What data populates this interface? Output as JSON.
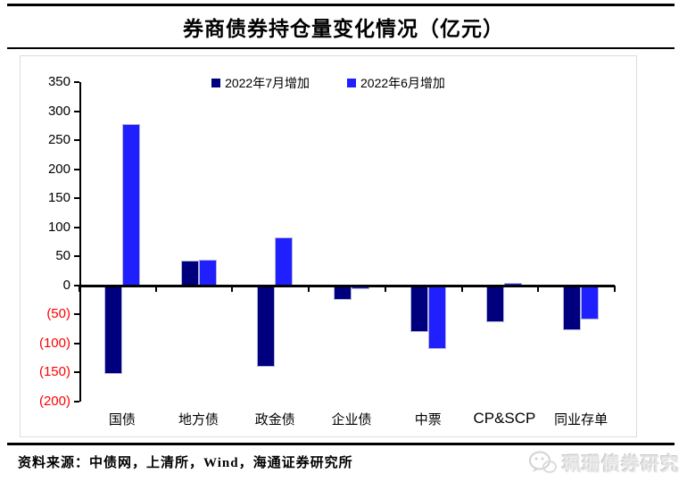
{
  "title": "券商债券持仓量变化情况（亿元）",
  "source": "资料来源：中债网，上清所，Wind，海通证券研究所",
  "watermark": "珮珊债券研究",
  "colors": {
    "july": "#00007F",
    "june": "#2020FF",
    "negative_label": "#FF0000",
    "axis": "#000000",
    "bar_edge": "#b4b4da"
  },
  "chart_data": {
    "type": "bar",
    "title": "券商债券持仓量变化情况（亿元）",
    "categories": [
      "国债",
      "地方债",
      "政金债",
      "企业债",
      "中票",
      "CP&SCP",
      "同业存单"
    ],
    "series": [
      {
        "name": "2022年7月增加",
        "color_key": "july",
        "values": [
          -153,
          42,
          -140,
          -25,
          -80,
          -63,
          -77
        ]
      },
      {
        "name": "2022年6月增加",
        "color_key": "june",
        "values": [
          278,
          45,
          83,
          -7,
          -110,
          4,
          -58
        ]
      }
    ],
    "xlabel": "",
    "ylabel": "",
    "ylim": [
      -200,
      350
    ],
    "ytick_step": 50,
    "ytick_labels": [
      "350",
      "300",
      "250",
      "200",
      "150",
      "100",
      "50",
      "0",
      "(50)",
      "(100)",
      "(150)",
      "(200)"
    ],
    "negative_label_style": "red-parentheses",
    "legend_position": "top-center",
    "grid": false
  }
}
